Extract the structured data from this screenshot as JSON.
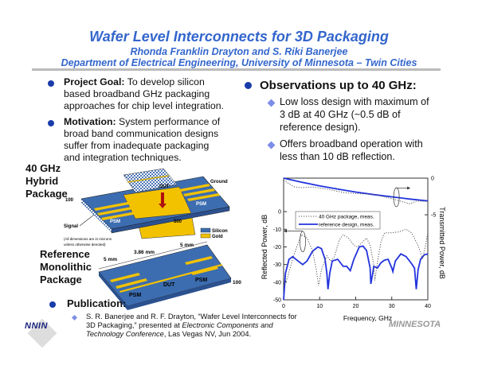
{
  "header": {
    "title": "Wafer Level Interconnects for 3D Packaging",
    "authors": "Rhonda Franklin Drayton and S. Riki Banerjee",
    "department": "Department of Electrical Engineering, University of Minnesota – Twin Cities"
  },
  "left": {
    "goal_label": "Project Goal:",
    "goal_lines": [
      "To develop silicon",
      "based broadband GHz packaging",
      "approaches for chip level integration."
    ],
    "motivation_label": "Motivation:",
    "motivation_lines": [
      "System performance of",
      "broad band communication designs",
      "suffer from inadequate packaging",
      "and integration techniques."
    ]
  },
  "diagram": {
    "hybrid_label": [
      "40 GHz",
      "Hybrid",
      "Package"
    ],
    "reference_label": [
      "Reference",
      "Monolithic",
      "Package"
    ],
    "dut": "DUT",
    "psm": "PSM",
    "ground": "Ground",
    "signal": "Signal",
    "dim_100": "100",
    "dim_500": "500",
    "dim_5mm": "5 mm",
    "dim_386": "3.86 mm",
    "legend_silicon": "Silicon",
    "legend_gold": "Gold",
    "note": [
      "(All dimensions are in microns",
      "unless otherwise denoted)"
    ],
    "colors": {
      "silicon": "#3c6db0",
      "gold": "#f2c200"
    }
  },
  "right": {
    "heading": "Observations up to 40 GHz:",
    "items": [
      [
        "Low loss design with maximum of",
        "3 dB at 40 GHz (~0.5 dB of",
        "reference design)."
      ],
      [
        "Offers broadband operation with",
        "less than 10 dB reflection."
      ]
    ]
  },
  "publication": {
    "label": "Publication:",
    "line1": "S. R. Banerjee and R. F. Drayton, “Wafer Level Interconnects for",
    "line2a": "3D Packaging,” presented at ",
    "line2b": "Electronic Components and",
    "line3a": "Technology Conference",
    "line3b": ", Las Vegas NV, Jun 2004."
  },
  "logos": {
    "nnin": "NNIN",
    "minnesota": "MINNESOTA"
  },
  "chart_data": {
    "type": "line",
    "xlabel": "Frequency, GHz",
    "ylabel": "Reflected Power, dB",
    "y2label": "Transmitted Power, dB",
    "xlim": [
      0,
      40
    ],
    "ylim": [
      -50,
      19
    ],
    "y2lim": [
      -16.6,
      0
    ],
    "xticks": [
      0,
      10,
      20,
      30,
      40
    ],
    "yticks": [
      0,
      -10,
      -20,
      -30,
      -40,
      -50
    ],
    "y2ticks": [
      0,
      -5
    ],
    "legend": [
      "40 GHz package, meas.",
      "reference design, meas."
    ],
    "series": [
      {
        "name": "reference design, meas. (reflected)",
        "axis": "left",
        "style": "solid",
        "x": [
          0,
          0.5,
          1.5,
          2.5,
          4,
          5.3,
          6.5,
          8,
          9.5,
          10.5,
          11.5,
          12,
          12.3,
          12.8,
          13.5,
          15,
          16.5,
          17.5,
          18.5,
          19.5,
          21,
          22,
          23,
          24,
          24.2,
          24.8,
          25,
          26,
          27,
          28,
          29,
          30,
          30.3,
          31,
          32.5,
          34,
          35.5,
          36.3,
          36.8,
          37.3,
          38,
          39,
          40
        ],
        "y": [
          -50,
          -35,
          -27,
          -25.5,
          -28,
          -30,
          -28,
          -22.5,
          -20,
          -21,
          -27,
          -35,
          -44,
          -35,
          -28,
          -27,
          -31,
          -31,
          -33.5,
          -27,
          -20,
          -19.5,
          -22,
          -32,
          -41,
          -34,
          -31,
          -32,
          -29,
          -27.5,
          -27,
          -32,
          -34,
          -28,
          -24,
          -25.5,
          -29.5,
          -32,
          -44,
          -33,
          -27,
          -24.5,
          -24
        ]
      },
      {
        "name": "40 GHz package, meas. (reflected)",
        "axis": "left",
        "style": "dotted",
        "x": [
          0,
          1,
          2.5,
          4,
          5,
          6.5,
          8,
          9,
          9.7,
          10.5,
          12,
          13,
          14,
          15.5,
          16.5,
          18,
          19.5,
          20.5,
          22,
          23,
          24,
          25,
          25.3,
          26,
          27,
          28,
          30,
          32,
          34,
          35.5,
          37,
          38,
          38.5,
          39.3,
          40
        ],
        "y": [
          -42,
          -38,
          -27,
          -18,
          -13,
          -15,
          -22,
          -32,
          -42,
          -33,
          -25,
          -28,
          -26,
          -16,
          -13,
          -15,
          -19,
          -20,
          -17,
          -15,
          -19,
          -30,
          -39,
          -29,
          -17,
          -12,
          -12,
          -11.5,
          -10,
          -12,
          -18,
          -23,
          -27,
          -20,
          -12
        ]
      },
      {
        "name": "reference design, meas. (transmitted)",
        "axis": "right",
        "style": "solid",
        "x": [
          0,
          5,
          10,
          15,
          20,
          25,
          30,
          35,
          40
        ],
        "y": [
          0,
          -0.55,
          -1.05,
          -1.5,
          -1.9,
          -2.25,
          -2.55,
          -2.85,
          -3.1
        ]
      },
      {
        "name": "40 GHz package, meas. (transmitted)",
        "axis": "right",
        "style": "dotted",
        "x": [
          0,
          3,
          5,
          8,
          12,
          17,
          20,
          25,
          30,
          35,
          37,
          40
        ],
        "y": [
          -0.3,
          -1.2,
          -1.3,
          -1.2,
          -1.5,
          -2,
          -2.1,
          -2.2,
          -2.8,
          -3.5,
          -3.1,
          -3.2
        ]
      }
    ]
  }
}
